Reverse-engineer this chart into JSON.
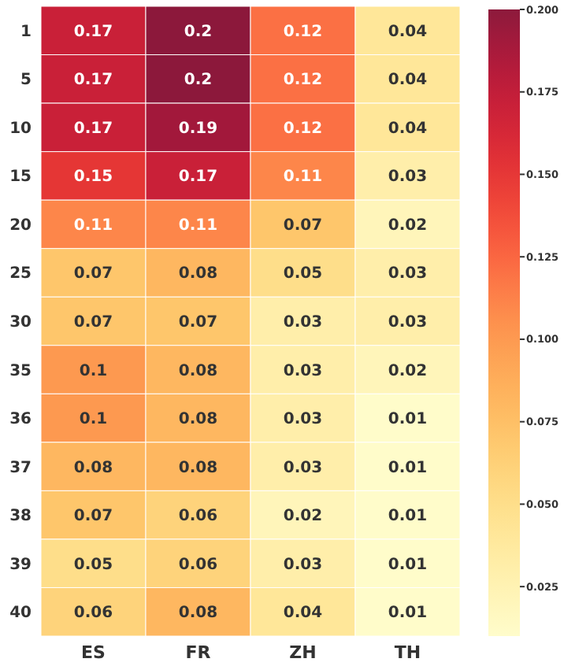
{
  "chart_data": {
    "type": "heatmap",
    "categories": [
      "ES",
      "FR",
      "ZH",
      "TH"
    ],
    "y_categories": [
      "1",
      "5",
      "10",
      "15",
      "20",
      "25",
      "30",
      "35",
      "36",
      "37",
      "38",
      "39",
      "40"
    ],
    "cells": [
      [
        0.17,
        0.2,
        0.12,
        0.04
      ],
      [
        0.17,
        0.2,
        0.12,
        0.04
      ],
      [
        0.17,
        0.19,
        0.12,
        0.04
      ],
      [
        0.15,
        0.17,
        0.11,
        0.03
      ],
      [
        0.11,
        0.11,
        0.07,
        0.02
      ],
      [
        0.07,
        0.08,
        0.05,
        0.03
      ],
      [
        0.07,
        0.07,
        0.03,
        0.03
      ],
      [
        0.1,
        0.08,
        0.03,
        0.02
      ],
      [
        0.1,
        0.08,
        0.03,
        0.01
      ],
      [
        0.08,
        0.08,
        0.03,
        0.01
      ],
      [
        0.07,
        0.06,
        0.02,
        0.01
      ],
      [
        0.05,
        0.06,
        0.03,
        0.01
      ],
      [
        0.06,
        0.08,
        0.04,
        0.01
      ]
    ],
    "clim": [
      0.01,
      0.2
    ],
    "cticks": [
      {
        "value": 0.025,
        "label": "0.025"
      },
      {
        "value": 0.05,
        "label": "0.050"
      },
      {
        "value": 0.075,
        "label": "0.075"
      },
      {
        "value": 0.1,
        "label": "0.100"
      },
      {
        "value": 0.125,
        "label": "0.125"
      },
      {
        "value": 0.15,
        "label": "0.150"
      },
      {
        "value": 0.175,
        "label": "0.175"
      },
      {
        "value": 0.2,
        "label": "0.200"
      }
    ],
    "data_labels": true
  }
}
